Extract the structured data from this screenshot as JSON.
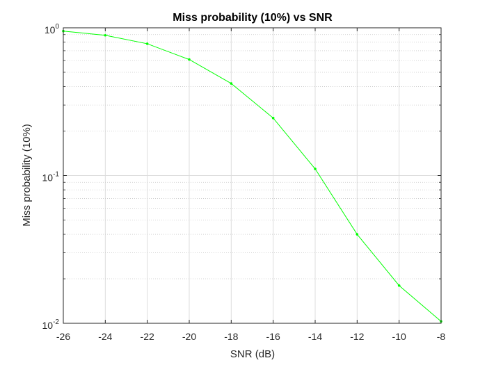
{
  "chart_data": {
    "type": "line",
    "title": "Miss probability (10%) vs SNR",
    "xlabel": "SNR (dB)",
    "ylabel": "Miss probability (10%)",
    "xlim": [
      -26,
      -8
    ],
    "ylim": [
      0.01,
      1
    ],
    "yscale": "log",
    "grid": true,
    "minor_grid_y": true,
    "x_ticks": [
      -26,
      -24,
      -22,
      -20,
      -18,
      -16,
      -14,
      -12,
      -10,
      -8
    ],
    "x_tick_labels": [
      "-26",
      "-24",
      "-22",
      "-20",
      "-18",
      "-16",
      "-14",
      "-12",
      "-10",
      "-8"
    ],
    "y_ticks": [
      {
        "value": 0.01,
        "base": "10",
        "exp": "-2"
      },
      {
        "value": 0.1,
        "base": "10",
        "exp": "-1"
      },
      {
        "value": 1,
        "base": "10",
        "exp": "0"
      }
    ],
    "series": [
      {
        "color": "#00ff00",
        "marker": ".",
        "x": [
          -26,
          -24,
          -22,
          -20,
          -18,
          -16,
          -14,
          -12,
          -10,
          -8
        ],
        "y": [
          0.95,
          0.89,
          0.78,
          0.61,
          0.42,
          0.245,
          0.111,
          0.04,
          0.018,
          0.0103
        ]
      }
    ]
  }
}
